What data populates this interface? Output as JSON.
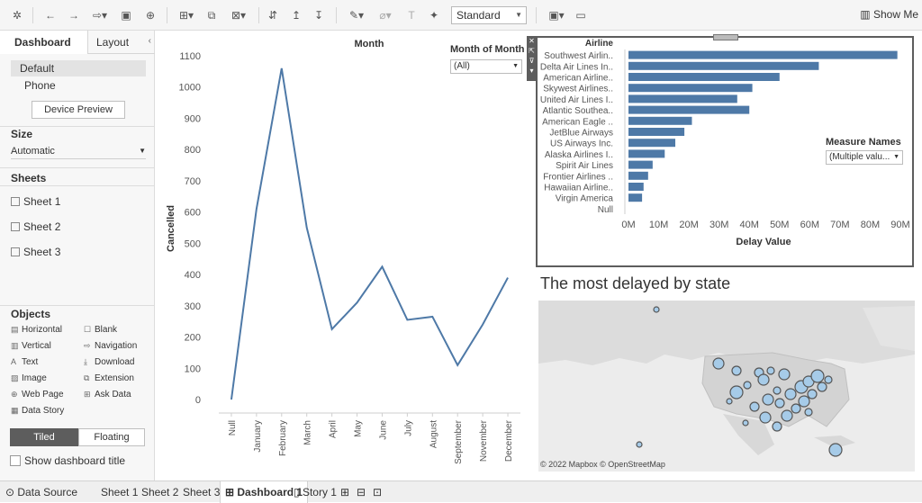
{
  "toolbar": {
    "fit_value": "Standard",
    "show_me": "Show Me",
    "icons": [
      "tableau-logo-icon",
      "undo-icon",
      "redo-icon",
      "replay-icon",
      "save-icon",
      "new-datasource-icon",
      "new-worksheet-icon",
      "duplicate-icon",
      "clear-icon",
      "swap-icon",
      "sort-ascending-icon",
      "sort-descending-icon",
      "highlight-icon",
      "group-icon",
      "label-icon",
      "pin-icon",
      "fit-icon",
      "presentation-icon"
    ]
  },
  "left_panel": {
    "tabs": [
      "Dashboard",
      "Layout"
    ],
    "devices": [
      "Default",
      "Phone"
    ],
    "device_preview": "Device Preview",
    "size_title": "Size",
    "size_value": "Automatic",
    "sheets_title": "Sheets",
    "sheets": [
      "Sheet 1",
      "Sheet 2",
      "Sheet 3"
    ],
    "objects_title": "Objects",
    "objects": [
      {
        "label": "Horizontal",
        "icon": "horizontal-icon"
      },
      {
        "label": "Blank",
        "icon": "blank-icon"
      },
      {
        "label": "Vertical",
        "icon": "vertical-icon"
      },
      {
        "label": "Navigation",
        "icon": "navigation-icon"
      },
      {
        "label": "Text",
        "icon": "text-icon"
      },
      {
        "label": "Download",
        "icon": "download-icon"
      },
      {
        "label": "Image",
        "icon": "image-icon"
      },
      {
        "label": "Extension",
        "icon": "extension-icon"
      },
      {
        "label": "Web Page",
        "icon": "web-page-icon"
      },
      {
        "label": "Ask Data",
        "icon": "ask-data-icon"
      },
      {
        "label": "Data Story",
        "icon": "data-story-icon"
      }
    ],
    "tiled": "Tiled",
    "floating": "Floating",
    "show_title": "Show dashboard title"
  },
  "filters": {
    "month_title": "Month of Month",
    "month_value": "(All)",
    "measure_title": "Measure Names",
    "measure_value": "(Multiple valu..."
  },
  "chart_data": [
    {
      "type": "line",
      "title": "Month",
      "xlabel": "",
      "ylabel": "Cancelled",
      "categories": [
        "Null",
        "January",
        "February",
        "March",
        "April",
        "May",
        "June",
        "July",
        "August",
        "September",
        "November",
        "December"
      ],
      "values": [
        0,
        610,
        1060,
        550,
        225,
        310,
        425,
        255,
        265,
        110,
        240,
        390
      ],
      "ylim": [
        0,
        1100
      ],
      "yticks": [
        "0",
        "100",
        "200",
        "300",
        "400",
        "500",
        "600",
        "700",
        "800",
        "900",
        "1000",
        "1100"
      ],
      "color": "#4e79a7"
    },
    {
      "type": "bar",
      "orientation": "horizontal",
      "title": "",
      "category_header": "Airline",
      "xlabel": "Delay Value",
      "categories": [
        "Southwest Airlin..",
        "Delta Air Lines In..",
        "American Airline..",
        "Skywest Airlines..",
        "United Air Lines I..",
        "Atlantic Southea..",
        "American Eagle ..",
        "JetBlue Airways",
        "US Airways Inc.",
        "Alaska Airlines I..",
        "Spirit Air Lines",
        "Frontier Airlines ..",
        "Hawaiian Airline..",
        "Virgin America",
        "Null"
      ],
      "values": [
        89,
        63,
        50,
        41,
        36,
        40,
        21,
        18.5,
        15.5,
        12,
        8,
        6.5,
        5,
        4.5,
        0
      ],
      "unit": "M",
      "xlim": [
        0,
        90
      ],
      "xticks": [
        "0M",
        "10M",
        "20M",
        "30M",
        "40M",
        "50M",
        "60M",
        "70M",
        "80M",
        "90M"
      ],
      "color": "#4e79a7"
    }
  ],
  "map": {
    "title": "The most delayed by state",
    "attribution": "© 2022 Mapbox © OpenStreetMap",
    "bubble_color": "#a6cbe8"
  },
  "status_bar": {
    "data_source": "Data Source",
    "sheets": [
      "Sheet 1",
      "Sheet 2",
      "Sheet 3"
    ],
    "active": "Dashboard 1",
    "story": "Story 1"
  }
}
